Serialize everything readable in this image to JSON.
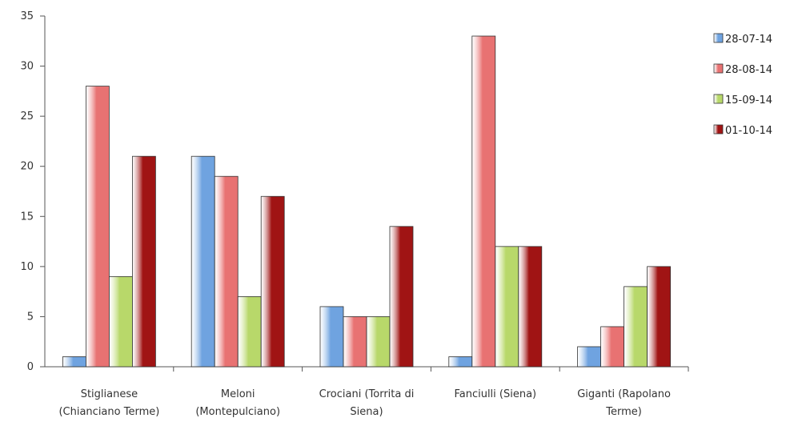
{
  "chart_data": {
    "type": "bar",
    "title": "",
    "xlabel": "",
    "ylabel": "",
    "ylim": [
      0,
      35
    ],
    "yticks": [
      0,
      5,
      10,
      15,
      20,
      25,
      30,
      35
    ],
    "grid": false,
    "legend_position": "right",
    "categories": [
      [
        "Stiglianese",
        "(Chianciano Terme)"
      ],
      [
        "Meloni",
        "(Montepulciano)"
      ],
      [
        "Crociani (Torrita di",
        "Siena)"
      ],
      [
        "Fanciulli (Siena)"
      ],
      [
        "Giganti (Rapolano",
        "Terme)"
      ]
    ],
    "series": [
      {
        "name": "28-07-14",
        "color": "#6fa3e0",
        "values": [
          1,
          21,
          6,
          1,
          2
        ]
      },
      {
        "name": "28-08-14",
        "color": "#e87272",
        "values": [
          28,
          19,
          5,
          33,
          4
        ]
      },
      {
        "name": "15-09-14",
        "color": "#b8d86a",
        "values": [
          9,
          7,
          5,
          12,
          8
        ]
      },
      {
        "name": "01-10-14",
        "color": "#a01414",
        "values": [
          21,
          17,
          14,
          12,
          10
        ]
      }
    ]
  }
}
